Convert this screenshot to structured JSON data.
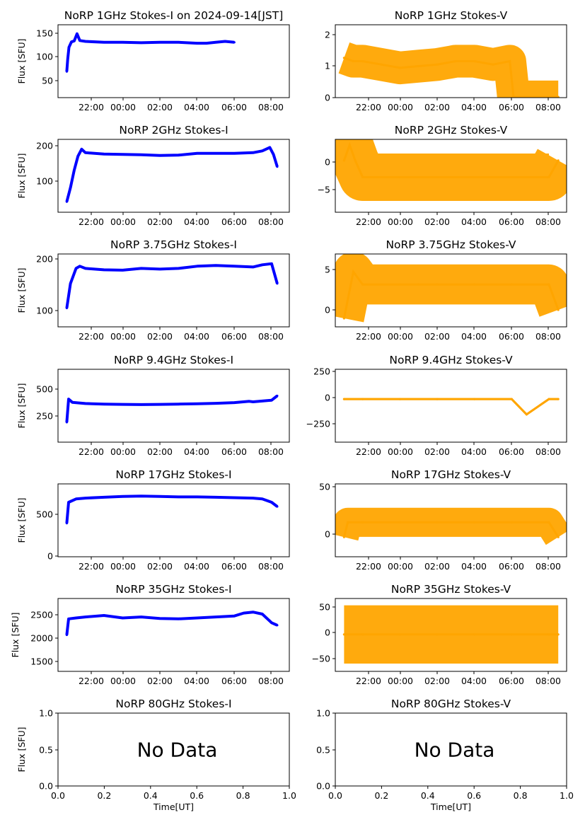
{
  "chart_data": [
    {
      "type": "scatter",
      "title": "NoRP 1GHz Stokes-I on 2024-09-14[JST]",
      "ylabel": "Flux [SFU]",
      "xlabel": "",
      "color": "#0000ff",
      "x_ticks": [
        "22:00",
        "00:00",
        "02:00",
        "04:00",
        "06:00",
        "08:00"
      ],
      "y_ticks": [
        "50",
        "100",
        "150"
      ],
      "ylim": [
        10,
        172
      ],
      "series": [
        {
          "values": [
            [
              21.0,
              68
            ],
            [
              21.05,
              95
            ],
            [
              21.12,
              122
            ],
            [
              21.25,
              134
            ],
            [
              21.4,
              136
            ],
            [
              21.55,
              152
            ],
            [
              21.7,
              137
            ],
            [
              22.0,
              135
            ],
            [
              23.0,
              133
            ],
            [
              24.0,
              133
            ],
            [
              25.0,
              132
            ],
            [
              26.0,
              133
            ],
            [
              27.0,
              133
            ],
            [
              28.0,
              131
            ],
            [
              28.5,
              131
            ],
            [
              29.0,
              133
            ],
            [
              29.5,
              135
            ],
            [
              30.0,
              133
            ]
          ]
        }
      ]
    },
    {
      "type": "scatter",
      "title": "NoRP 1GHz Stokes-V",
      "ylabel": "",
      "xlabel": "",
      "color": "#ffa500",
      "x_ticks": [
        "22:00",
        "00:00",
        "02:00",
        "04:00",
        "06:00",
        "08:00"
      ],
      "y_ticks": [
        "0",
        "1",
        "2"
      ],
      "ylim": [
        0,
        2.2
      ],
      "series": [
        {
          "values": [
            [
              21.0,
              1.2
            ],
            [
              21.5,
              1.1
            ],
            [
              22.0,
              1.1
            ],
            [
              23.0,
              1.0
            ],
            [
              24.0,
              0.9
            ],
            [
              25.0,
              0.95
            ],
            [
              26.0,
              1.0
            ],
            [
              27.0,
              1.1
            ],
            [
              28.0,
              1.1
            ],
            [
              29.0,
              1.0
            ],
            [
              29.9,
              1.1
            ],
            [
              30.1,
              0.02
            ],
            [
              32.5,
              0.02
            ]
          ]
        }
      ]
    },
    {
      "type": "scatter",
      "title": "NoRP 2GHz Stokes-I",
      "ylabel": "Flux [SFU]",
      "xlabel": "",
      "color": "#0000ff",
      "x_ticks": [
        "22:00",
        "00:00",
        "02:00",
        "04:00",
        "06:00",
        "08:00"
      ],
      "y_ticks": [
        "100",
        "200"
      ],
      "ylim": [
        10,
        218
      ],
      "series": [
        {
          "values": [
            [
              21.0,
              40
            ],
            [
              21.2,
              80
            ],
            [
              21.4,
              130
            ],
            [
              21.6,
              170
            ],
            [
              21.8,
              190
            ],
            [
              22.0,
              180
            ],
            [
              23.0,
              176
            ],
            [
              24.0,
              175
            ],
            [
              25.0,
              174
            ],
            [
              26.0,
              172
            ],
            [
              27.0,
              173
            ],
            [
              28.0,
              178
            ],
            [
              29.0,
              178
            ],
            [
              30.0,
              178
            ],
            [
              31.0,
              180
            ],
            [
              31.5,
              185
            ],
            [
              31.9,
              195
            ],
            [
              32.1,
              175
            ],
            [
              32.3,
              140
            ]
          ]
        }
      ]
    },
    {
      "type": "scatter",
      "title": "NoRP 2GHz Stokes-V",
      "ylabel": "",
      "xlabel": "",
      "color": "#ffa500",
      "x_ticks": [
        "22:00",
        "00:00",
        "02:00",
        "04:00",
        "06:00",
        "08:00"
      ],
      "y_ticks": [
        "0",
        "−5"
      ],
      "ylim": [
        -9.3,
        3.8
      ],
      "series": [
        {
          "values": [
            [
              21.0,
              0
            ],
            [
              21.3,
              2.8
            ],
            [
              21.6,
              0
            ],
            [
              22.0,
              -3.0
            ],
            [
              24.0,
              -3.0
            ],
            [
              26.0,
              -3.0
            ],
            [
              28.0,
              -3.0
            ],
            [
              30.0,
              -3.0
            ],
            [
              32.0,
              -3.0
            ],
            [
              32.5,
              0
            ]
          ]
        }
      ]
    },
    {
      "type": "scatter",
      "title": "NoRP 3.75GHz Stokes-I",
      "ylabel": "Flux [SFU]",
      "xlabel": "",
      "color": "#0000ff",
      "x_ticks": [
        "22:00",
        "00:00",
        "02:00",
        "04:00",
        "06:00",
        "08:00"
      ],
      "y_ticks": [
        "100",
        "200"
      ],
      "ylim": [
        10,
        212
      ],
      "series": [
        {
          "values": [
            [
              21.0,
              62
            ],
            [
              21.2,
              130
            ],
            [
              21.5,
              172
            ],
            [
              21.7,
              178
            ],
            [
              22.0,
              172
            ],
            [
              23.0,
              168
            ],
            [
              24.0,
              167
            ],
            [
              25.0,
              172
            ],
            [
              26.0,
              170
            ],
            [
              27.0,
              172
            ],
            [
              28.0,
              178
            ],
            [
              29.0,
              180
            ],
            [
              30.0,
              178
            ],
            [
              31.0,
              176
            ],
            [
              31.5,
              182
            ],
            [
              32.0,
              185
            ],
            [
              32.3,
              130
            ]
          ]
        }
      ]
    },
    {
      "type": "scatter",
      "title": "NoRP 3.75GHz Stokes-V",
      "ylabel": "",
      "xlabel": "",
      "color": "#ffa500",
      "x_ticks": [
        "22:00",
        "00:00",
        "02:00",
        "04:00",
        "06:00",
        "08:00"
      ],
      "y_ticks": [
        "0",
        "5"
      ],
      "ylim": [
        -2.0,
        6.6
      ],
      "series": [
        {
          "values": [
            [
              21.0,
              -1.0
            ],
            [
              21.5,
              4.5
            ],
            [
              22.0,
              3.0
            ],
            [
              24.0,
              3.0
            ],
            [
              25.0,
              3.0
            ],
            [
              26.0,
              3.0
            ],
            [
              28.0,
              3.0
            ],
            [
              30.0,
              3.0
            ],
            [
              32.0,
              3.0
            ],
            [
              32.5,
              0
            ]
          ]
        }
      ]
    },
    {
      "type": "scatter",
      "title": "NoRP 9.4GHz Stokes-I",
      "ylabel": "Flux [SFU]",
      "xlabel": "",
      "color": "#0000ff",
      "x_ticks": [
        "22:00",
        "00:00",
        "02:00",
        "04:00",
        "06:00",
        "08:00"
      ],
      "y_ticks": [
        "250",
        "500"
      ],
      "ylim": [
        20,
        680
      ],
      "series": [
        {
          "values": [
            [
              21.0,
              200
            ],
            [
              21.1,
              410
            ],
            [
              21.3,
              380
            ],
            [
              22.0,
              370
            ],
            [
              23.0,
              365
            ],
            [
              24.0,
              362
            ],
            [
              25.0,
              360
            ],
            [
              26.0,
              362
            ],
            [
              27.0,
              365
            ],
            [
              28.0,
              368
            ],
            [
              29.0,
              372
            ],
            [
              30.0,
              378
            ],
            [
              30.8,
              390
            ],
            [
              31.0,
              385
            ],
            [
              32.0,
              400
            ],
            [
              32.3,
              440
            ]
          ]
        }
      ]
    },
    {
      "type": "scatter",
      "title": "NoRP 9.4GHz Stokes-V",
      "ylabel": "",
      "xlabel": "",
      "color": "#ffa500",
      "x_ticks": [
        "22:00",
        "00:00",
        "02:00",
        "04:00",
        "06:00",
        "08:00"
      ],
      "y_ticks": [
        "250",
        "0",
        "−250"
      ],
      "ylim": [
        -420,
        290
      ],
      "series": [
        {
          "values": [
            [
              21.0,
              0
            ],
            [
              22.0,
              0
            ],
            [
              24.0,
              0
            ],
            [
              26.0,
              0
            ],
            [
              28.0,
              0
            ],
            [
              30.0,
              0
            ],
            [
              30.8,
              -150
            ],
            [
              32.0,
              0
            ],
            [
              32.5,
              0
            ]
          ]
        }
      ]
    },
    {
      "type": "scatter",
      "title": "NoRP 17GHz Stokes-I",
      "ylabel": "Flux [SFU]",
      "xlabel": "",
      "color": "#0000ff",
      "x_ticks": [
        "22:00",
        "00:00",
        "02:00",
        "04:00",
        "06:00",
        "08:00"
      ],
      "y_ticks": [
        "0",
        "500"
      ],
      "ylim": [
        0,
        870
      ],
      "series": [
        {
          "values": [
            [
              21.0,
              400
            ],
            [
              21.1,
              650
            ],
            [
              21.5,
              690
            ],
            [
              22.0,
              700
            ],
            [
              23.0,
              710
            ],
            [
              24.0,
              720
            ],
            [
              25.0,
              725
            ],
            [
              26.0,
              720
            ],
            [
              27.0,
              715
            ],
            [
              28.0,
              715
            ],
            [
              29.0,
              710
            ],
            [
              30.0,
              705
            ],
            [
              31.0,
              700
            ],
            [
              31.5,
              690
            ],
            [
              32.0,
              650
            ],
            [
              32.3,
              600
            ]
          ]
        }
      ]
    },
    {
      "type": "scatter",
      "title": "NoRP 17GHz Stokes-V",
      "ylabel": "",
      "xlabel": "",
      "color": "#ffa500",
      "x_ticks": [
        "22:00",
        "00:00",
        "02:00",
        "04:00",
        "06:00",
        "08:00"
      ],
      "y_ticks": [
        "0",
        "50"
      ],
      "ylim": [
        -20,
        54
      ],
      "series": [
        {
          "values": [
            [
              21.0,
              0
            ],
            [
              21.2,
              15
            ],
            [
              22.0,
              15
            ],
            [
              24.0,
              15
            ],
            [
              26.0,
              15
            ],
            [
              28.0,
              15
            ],
            [
              30.0,
              15
            ],
            [
              32.0,
              15
            ],
            [
              32.5,
              0
            ]
          ]
        }
      ]
    },
    {
      "type": "scatter",
      "title": "NoRP 35GHz Stokes-I",
      "ylabel": "Flux [SFU]",
      "xlabel": "",
      "color": "#0000ff",
      "x_ticks": [
        "22:00",
        "00:00",
        "02:00",
        "04:00",
        "06:00",
        "08:00"
      ],
      "y_ticks": [
        "1500",
        "2000",
        "2500"
      ],
      "ylim": [
        1300,
        2800
      ],
      "series": [
        {
          "values": [
            [
              21.0,
              2050
            ],
            [
              21.1,
              2380
            ],
            [
              21.5,
              2400
            ],
            [
              22.0,
              2420
            ],
            [
              23.0,
              2450
            ],
            [
              24.0,
              2400
            ],
            [
              25.0,
              2420
            ],
            [
              26.0,
              2390
            ],
            [
              27.0,
              2380
            ],
            [
              28.0,
              2400
            ],
            [
              29.0,
              2420
            ],
            [
              30.0,
              2440
            ],
            [
              30.5,
              2500
            ],
            [
              31.0,
              2520
            ],
            [
              31.5,
              2480
            ],
            [
              32.0,
              2300
            ],
            [
              32.3,
              2250
            ]
          ]
        }
      ]
    },
    {
      "type": "scatter",
      "title": "NoRP 35GHz Stokes-V",
      "ylabel": "",
      "xlabel": "",
      "color": "#ffa500",
      "x_ticks": [
        "22:00",
        "00:00",
        "02:00",
        "04:00",
        "06:00",
        "08:00"
      ],
      "y_ticks": [
        "50",
        "0",
        "−50"
      ],
      "ylim": [
        -70,
        68
      ],
      "series": [
        {
          "values": [
            [
              21.0,
              0
            ],
            [
              22.0,
              0
            ],
            [
              24.0,
              0
            ],
            [
              26.0,
              0
            ],
            [
              28.0,
              0
            ],
            [
              30.0,
              0
            ],
            [
              32.0,
              0
            ],
            [
              32.5,
              0
            ]
          ]
        }
      ]
    },
    {
      "type": "scatter",
      "title": "NoRP 80GHz Stokes-I",
      "ylabel": "Flux [SFU]",
      "xlabel": "Time[UT]",
      "color": "#0000ff",
      "x_ticks": [
        "0.0",
        "0.2",
        "0.4",
        "0.6",
        "0.8",
        "1.0"
      ],
      "y_ticks": [
        "0.0",
        "0.5",
        "1.0"
      ],
      "ylim": [
        0,
        1
      ],
      "annotation": "No Data",
      "series": []
    },
    {
      "type": "scatter",
      "title": "NoRP 80GHz Stokes-V",
      "ylabel": "",
      "xlabel": "Time[UT]",
      "color": "#ffa500",
      "x_ticks": [
        "0.0",
        "0.2",
        "0.4",
        "0.6",
        "0.8",
        "1.0"
      ],
      "y_ticks": [
        "0.0",
        "0.5",
        "1.0"
      ],
      "ylim": [
        0,
        1
      ],
      "annotation": "No Data",
      "series": []
    }
  ]
}
